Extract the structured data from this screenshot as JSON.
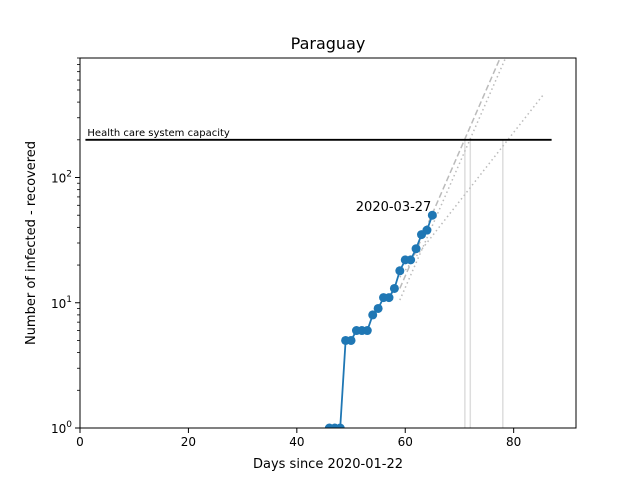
{
  "chart_data": {
    "type": "line",
    "title": "Paraguay",
    "xlabel": "Days since 2020-01-22",
    "ylabel": "Number of infected - recovered",
    "xlim": [
      0,
      91.5
    ],
    "ylim": [
      1,
      900
    ],
    "yscale": "log",
    "grid": false,
    "xticks": [
      0,
      20,
      40,
      60,
      80
    ],
    "xtick_labels": [
      "0",
      "20",
      "40",
      "60",
      "80"
    ],
    "yticks": [
      1,
      10,
      100
    ],
    "ytick_labels": [
      "10^0",
      "10^1",
      "10^2"
    ],
    "series": [
      {
        "name": "",
        "color": "#1f77b4",
        "x": [
          46,
          47,
          48,
          49,
          50,
          51,
          52,
          53,
          54,
          55,
          56,
          57,
          58,
          59,
          60,
          61,
          62,
          63,
          64,
          65
        ],
        "y": [
          1,
          1,
          1,
          5,
          5,
          6,
          6,
          6,
          8,
          9,
          11,
          11,
          13,
          18,
          22,
          22,
          27,
          35,
          38,
          50
        ]
      }
    ],
    "capacity": {
      "label": "Health care system capacity",
      "value": 200,
      "x_start": 1,
      "x_end": 87
    },
    "annotation": {
      "text": "2020-03-27",
      "x": 65,
      "y": 50
    },
    "fits": [
      {
        "style": "dotted",
        "color": "#bbbbbb",
        "x": [
          59,
          85.5
        ],
        "y": [
          16,
          460
        ]
      },
      {
        "style": "dotted",
        "color": "#bbbbbb",
        "x": [
          59,
          78.5
        ],
        "y": [
          10.5,
          900
        ]
      },
      {
        "style": "dashed",
        "color": "#bbbbbb",
        "x": [
          59,
          77.5
        ],
        "y": [
          13,
          900
        ]
      }
    ],
    "vlines": [
      {
        "x": 71,
        "color": "#dddddd"
      },
      {
        "x": 72,
        "color": "#dddddd"
      },
      {
        "x": 78,
        "color": "#dddddd"
      }
    ]
  }
}
